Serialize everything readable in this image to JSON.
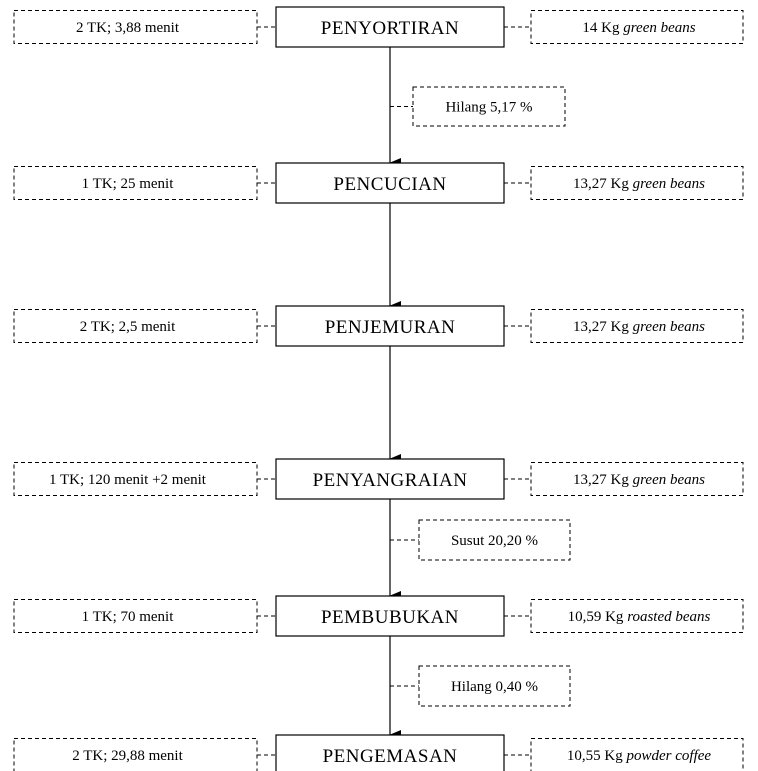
{
  "steps": [
    {
      "name": "PENYORTIRAN",
      "labor": "2 TK; 3,88 menit",
      "amount": "14 Kg",
      "material": "green beans"
    },
    {
      "name": "PENCUCIAN",
      "labor": "1 TK; 25 menit",
      "amount": "13,27 Kg",
      "material": "green beans"
    },
    {
      "name": "PENJEMURAN",
      "labor": "2 TK; 2,5 menit",
      "amount": "13,27 Kg",
      "material": "green beans"
    },
    {
      "name": "PENYANGRAIAN",
      "labor": "1 TK; 120 menit +2 menit",
      "amount": "13,27 Kg",
      "material": "green beans"
    },
    {
      "name": "PEMBUBUKAN",
      "labor": "1 TK; 70 menit",
      "amount": "10,59 Kg",
      "material": "roasted beans"
    },
    {
      "name": "PENGEMASAN",
      "labor": "2 TK; 29,88 menit",
      "amount": "10,55 Kg",
      "material": "powder coffee"
    }
  ],
  "notes": [
    {
      "after_step": 0,
      "text": "Hilang 5,17 %"
    },
    {
      "after_step": 3,
      "text": "Susut 20,20 %"
    },
    {
      "after_step": 4,
      "text": "Hilang 0,40 %"
    }
  ],
  "colors": {
    "line": "#000000",
    "background": "#ffffff"
  }
}
